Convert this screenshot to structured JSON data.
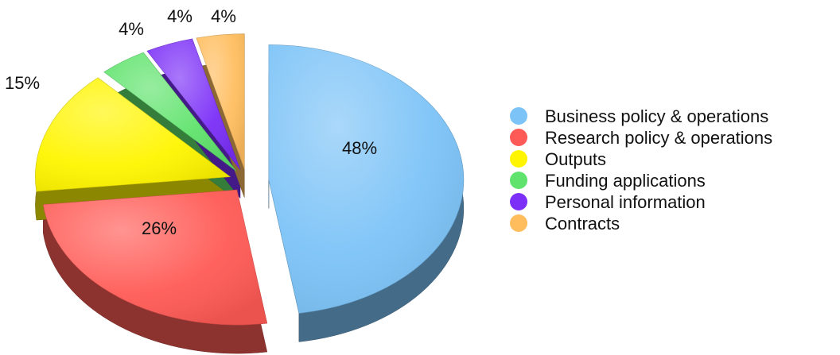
{
  "chart_data": {
    "type": "pie",
    "title": "",
    "legend_position": "right",
    "slices": [
      {
        "label": "Business policy & operations",
        "value": 48,
        "value_label": "48%",
        "color": "#7cc3f7"
      },
      {
        "label": "Research policy & operations",
        "value": 26,
        "value_label": "26%",
        "color": "#ff5a55"
      },
      {
        "label": "Outputs",
        "value": 15,
        "value_label": "15%",
        "color": "#fff500"
      },
      {
        "label": "Funding applications",
        "value": 4,
        "value_label": "4%",
        "color": "#5fe36c"
      },
      {
        "label": "Personal information",
        "value": 4,
        "value_label": "4%",
        "color": "#7b2ff7"
      },
      {
        "label": "Contracts",
        "value": 4,
        "value_label": "4%",
        "color": "#ffbd5e"
      }
    ]
  }
}
